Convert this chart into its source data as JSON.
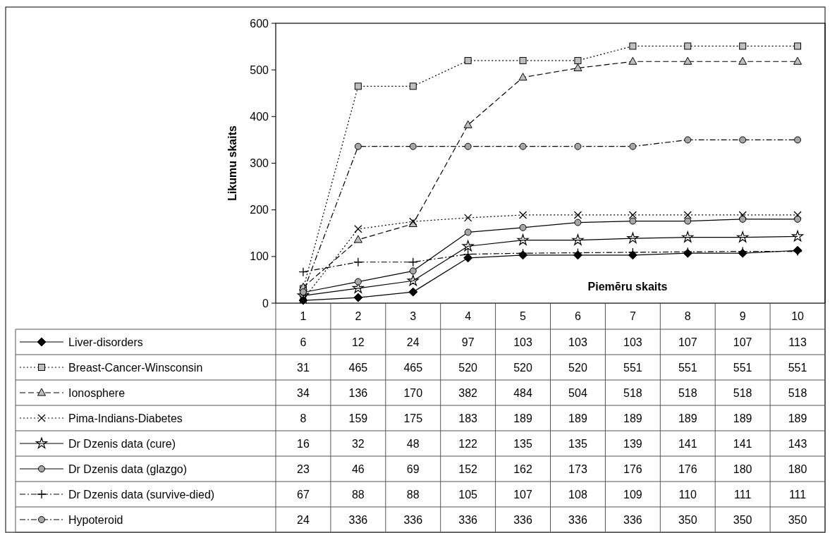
{
  "chart_data": {
    "type": "line",
    "categories": [
      "1",
      "2",
      "3",
      "4",
      "5",
      "6",
      "7",
      "8",
      "9",
      "10"
    ],
    "xlabel": "Piemēru skaits",
    "ylabel": "Likumu skaits",
    "ylim": [
      0,
      600
    ],
    "yticks": [
      0,
      100,
      200,
      300,
      400,
      500,
      600
    ],
    "grid": false,
    "legend": "bottom",
    "data_labels": true,
    "series": [
      {
        "name": "Liver-disorders",
        "color": "#000000",
        "marker": "diamond",
        "line_style": "solid",
        "values": [
          6,
          12,
          24,
          97,
          103,
          103,
          103,
          107,
          107,
          113
        ]
      },
      {
        "name": "Breast-Cancer-Winsconsin",
        "color": "#000000",
        "marker": "square",
        "line_style": "dotted",
        "values": [
          31,
          465,
          465,
          520,
          520,
          520,
          551,
          551,
          551,
          551
        ]
      },
      {
        "name": "Ionosphere",
        "color": "#000000",
        "marker": "triangle",
        "line_style": "dashed",
        "values": [
          34,
          136,
          170,
          382,
          484,
          504,
          518,
          518,
          518,
          518
        ]
      },
      {
        "name": "Pima-Indians-Diabetes",
        "color": "#000000",
        "marker": "cross",
        "line_style": "dotted",
        "values": [
          8,
          159,
          175,
          183,
          189,
          189,
          189,
          189,
          189,
          189
        ]
      },
      {
        "name": "Dr Dzenis data (cure)",
        "color": "#000000",
        "marker": "star",
        "line_style": "solid",
        "values": [
          16,
          32,
          48,
          122,
          135,
          135,
          139,
          141,
          141,
          143
        ]
      },
      {
        "name": "Dr Dzenis data (glazgo)",
        "color": "#000000",
        "marker": "circle",
        "line_style": "solid",
        "values": [
          23,
          46,
          69,
          152,
          162,
          173,
          176,
          176,
          180,
          180
        ]
      },
      {
        "name": "Dr Dzenis data (survive-died)",
        "color": "#000000",
        "marker": "plus",
        "line_style": "dashdot",
        "values": [
          67,
          88,
          88,
          105,
          107,
          108,
          109,
          110,
          111,
          111
        ]
      },
      {
        "name": "Hypoteroid",
        "color": "#000000",
        "marker": "circle",
        "line_style": "dashdot",
        "values": [
          24,
          336,
          336,
          336,
          336,
          336,
          336,
          350,
          350,
          350
        ]
      }
    ]
  }
}
